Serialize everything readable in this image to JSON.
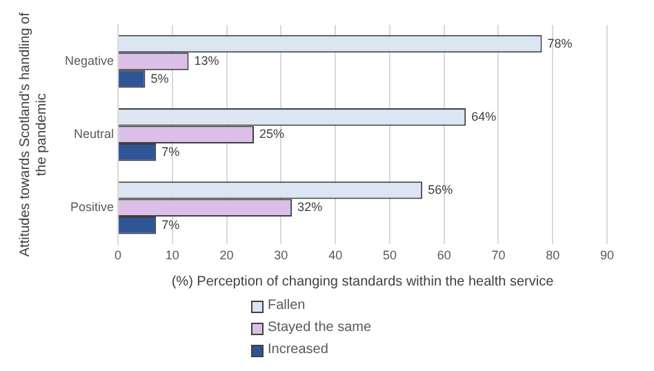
{
  "chart_data": {
    "type": "bar",
    "orientation": "horizontal",
    "xlabel": "(%) Perception of changing standards within the health service",
    "ylabel": "Attitudes towards Scotland's handling of the pandemic",
    "categories": [
      "Negative",
      "Neutral",
      "Positive"
    ],
    "series": [
      {
        "name": "Fallen",
        "color": "#dce6f2",
        "values": [
          78,
          64,
          56
        ],
        "value_labels": [
          "78%",
          "64%",
          "56%"
        ]
      },
      {
        "name": "Stayed the same",
        "color": "#dcbfe8",
        "values": [
          13,
          25,
          32
        ],
        "value_labels": [
          "13%",
          "25%",
          "32%"
        ]
      },
      {
        "name": "Increased",
        "color": "#2f5597",
        "values": [
          5,
          7,
          7
        ],
        "value_labels": [
          "5%",
          "7%",
          "7%"
        ]
      }
    ],
    "xlim": [
      0,
      90
    ],
    "xticks": [
      0,
      10,
      20,
      30,
      40,
      50,
      60,
      70,
      80,
      90
    ],
    "grid": "x",
    "legend": "bottom"
  }
}
